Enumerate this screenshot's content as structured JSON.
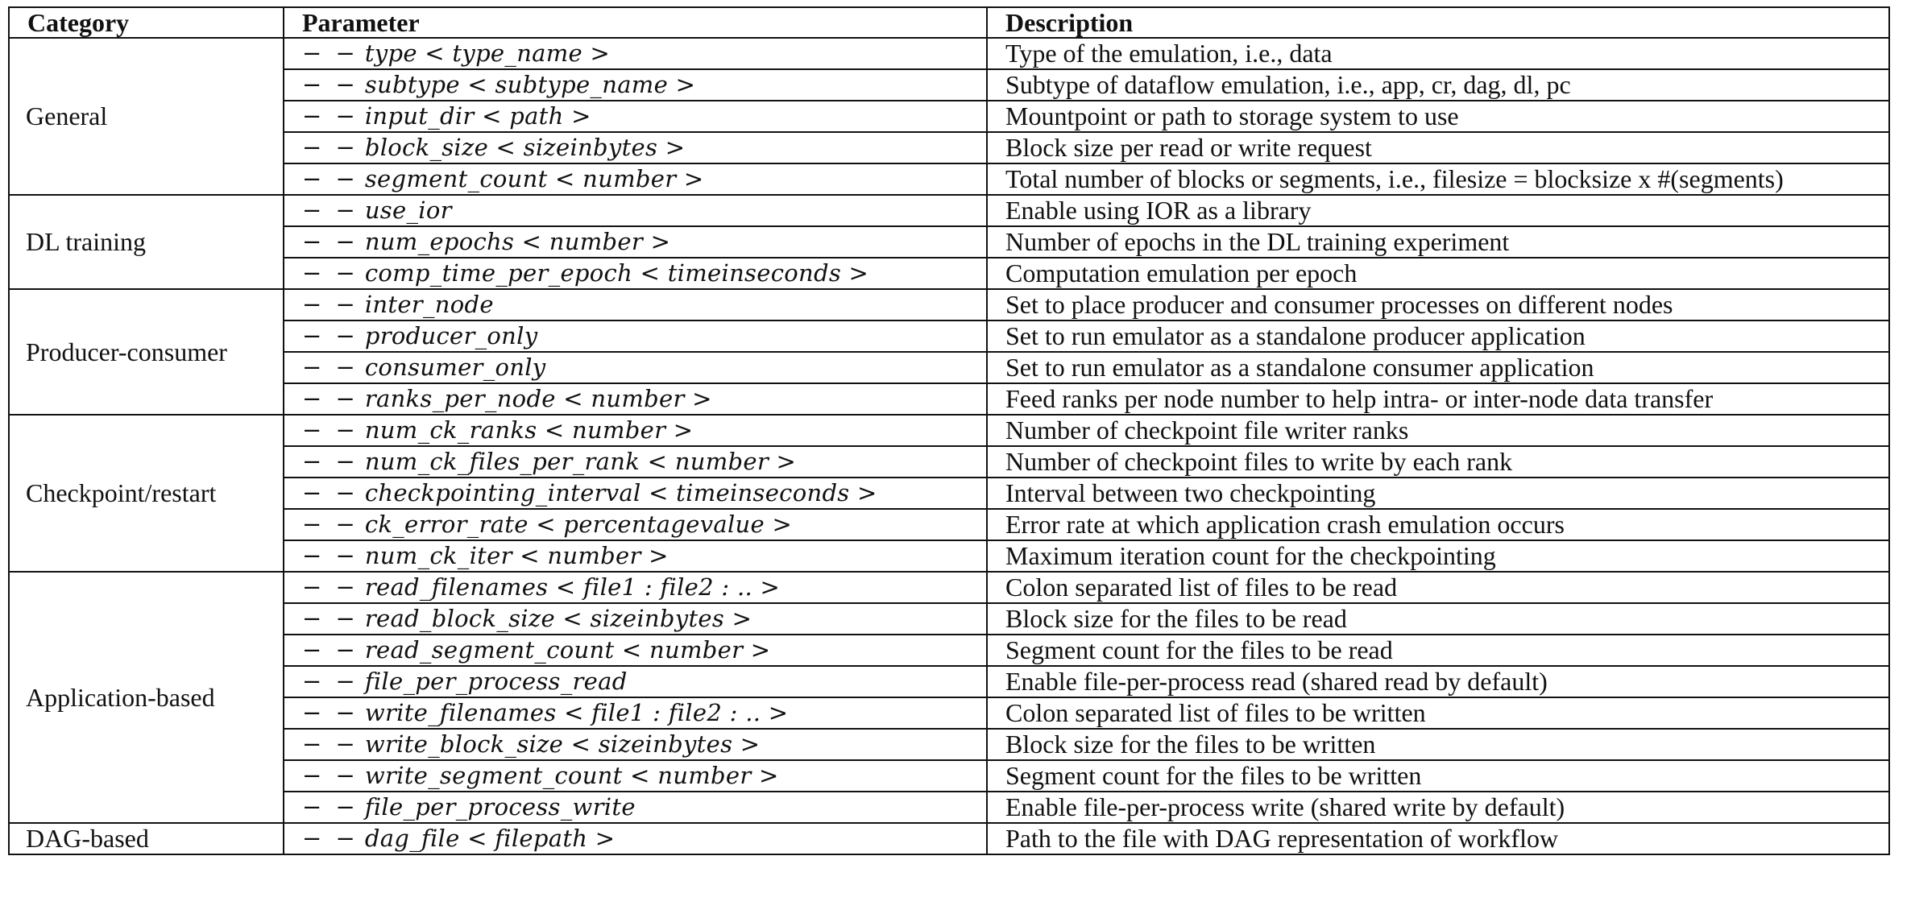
{
  "headers": [
    "Category",
    "Parameter",
    "Description"
  ],
  "groups": [
    {
      "category": "General",
      "rows": [
        {
          "param": "type < type_name >",
          "desc": "Type of the emulation, i.e., data"
        },
        {
          "param": "subtype < subtype_name >",
          "desc": "Subtype of dataflow emulation, i.e., app, cr, dag, dl, pc"
        },
        {
          "param": "input_dir < path >",
          "desc": "Mountpoint or path to storage system to use"
        },
        {
          "param": "block_size < sizeinbytes >",
          "desc": "Block size per read or write request"
        },
        {
          "param": "segment_count < number >",
          "desc": "Total number of blocks or segments, i.e., filesize = blocksize x #(segments)"
        }
      ]
    },
    {
      "category": "DL training",
      "rows": [
        {
          "param": "use_ior",
          "desc": "Enable using IOR as a library"
        },
        {
          "param": "num_epochs < number >",
          "desc": "Number of epochs in the DL training experiment"
        },
        {
          "param": "comp_time_per_epoch < timeinseconds >",
          "desc": "Computation emulation per epoch"
        }
      ]
    },
    {
      "category": "Producer-consumer",
      "rows": [
        {
          "param": "inter_node",
          "desc": "Set to place producer and consumer processes on different nodes"
        },
        {
          "param": "producer_only",
          "desc": "Set to run emulator as a standalone producer application"
        },
        {
          "param": "consumer_only",
          "desc": "Set to run emulator as a standalone consumer application"
        },
        {
          "param": "ranks_per_node < number >",
          "desc": "Feed ranks per node number to help intra- or inter-node data transfer"
        }
      ]
    },
    {
      "category": "Checkpoint/restart",
      "rows": [
        {
          "param": "num_ck_ranks < number >",
          "desc": "Number of checkpoint file writer ranks"
        },
        {
          "param": "num_ck_files_per_rank < number >",
          "desc": "Number of checkpoint files to write by each rank"
        },
        {
          "param": "checkpointing_interval < timeinseconds >",
          "desc": "Interval between two checkpointing"
        },
        {
          "param": "ck_error_rate < percentagevalue >",
          "desc": "Error rate at which application crash emulation occurs"
        },
        {
          "param": "num_ck_iter < number >",
          "desc": "Maximum iteration count for the checkpointing"
        }
      ]
    },
    {
      "category": "Application-based",
      "rows": [
        {
          "param": "read_filenames < file1 : file2 : .. >",
          "desc": "Colon separated list of files to be read"
        },
        {
          "param": "read_block_size < sizeinbytes >",
          "desc": "Block size for the files to be read"
        },
        {
          "param": "read_segment_count < number >",
          "desc": "Segment count for the files to be read"
        },
        {
          "param": "file_per_process_read",
          "desc": "Enable file-per-process read (shared read by default)"
        },
        {
          "param": "write_filenames < file1 : file2 : .. >",
          "desc": "Colon separated list of files to be written"
        },
        {
          "param": "write_block_size < sizeinbytes >",
          "desc": "Block size for the files to be written"
        },
        {
          "param": "write_segment_count < number >",
          "desc": "Segment count for the files to be written"
        },
        {
          "param": "file_per_process_write",
          "desc": "Enable file-per-process write (shared write by default)"
        }
      ]
    },
    {
      "category": "DAG-based",
      "rows": [
        {
          "param": "dag_file < filepath >",
          "desc": "Path to the file with DAG representation of workflow"
        }
      ]
    }
  ],
  "dash_prefix": "− −"
}
